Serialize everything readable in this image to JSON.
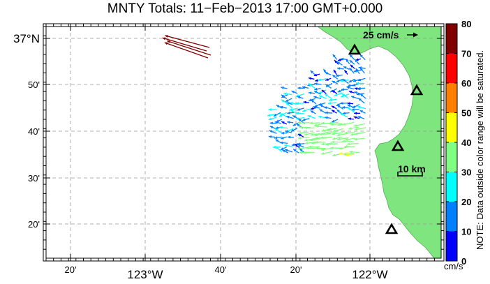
{
  "title": "MNTY Totals: 11−Feb−2013 17:00 GMT+0.000",
  "x_ticks": [
    {
      "label": "20'",
      "big": false
    },
    {
      "label": "123°W",
      "big": true
    },
    {
      "label": "40'",
      "big": false
    },
    {
      "label": "20'",
      "big": false
    },
    {
      "label": "122°W",
      "big": true
    }
  ],
  "y_ticks": [
    {
      "label": "37°N",
      "big": true
    },
    {
      "label": "50'",
      "big": false
    },
    {
      "label": "40'",
      "big": false
    },
    {
      "label": "30'",
      "big": false
    },
    {
      "label": "20'",
      "big": false
    }
  ],
  "colorbar": {
    "labels": [
      "80",
      "70",
      "60",
      "50",
      "40",
      "30",
      "20",
      "10",
      "0"
    ],
    "unit": "cm/s",
    "colors": [
      "#800000",
      "#ff0000",
      "#ff8000",
      "#ffff00",
      "#80ff80",
      "#00ffff",
      "#0080ff",
      "#0000ff"
    ]
  },
  "note": "NOTE: Data outside color range will be saturated.",
  "scale_vector_label": "25 cm/s",
  "scale_bar_label": "10 km",
  "colors": {
    "land": "#7fe67f",
    "grid": "#999999",
    "station": "#000000"
  },
  "stations": 4
}
